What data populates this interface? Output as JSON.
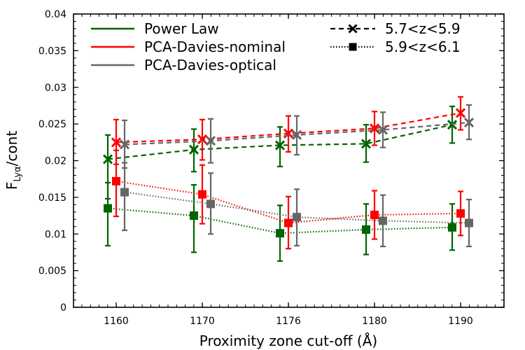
{
  "chart_data": {
    "type": "line",
    "xlabel": "Proximity zone cut-off (Å)",
    "ylabel_main": "F",
    "ylabel_sub": "Lyα",
    "ylabel_tail": "/cont",
    "categories": [
      "1160",
      "1170",
      "1176",
      "1180",
      "1190"
    ],
    "ylim": [
      0,
      0.04
    ],
    "yticks": [
      "0",
      "0.005",
      "0.01",
      "0.015",
      "0.02",
      "0.025",
      "0.03",
      "0.035",
      "0.04"
    ],
    "grid": false,
    "legend_position": "top",
    "legend_models": [
      {
        "name": "Power Law",
        "color": "#006400"
      },
      {
        "name": "PCA-Davies-nominal",
        "color": "#ff0000"
      },
      {
        "name": "PCA-Davies-optical",
        "color": "#666666"
      }
    ],
    "legend_redshift": [
      {
        "name": "5.7<z<5.9",
        "marker": "x",
        "dash": "dashed"
      },
      {
        "name": "5.9<z<6.1",
        "marker": "square",
        "dash": "dotted"
      }
    ],
    "series": [
      {
        "model": "Power Law",
        "z": "5.7<z<5.9",
        "color": "#006400",
        "marker": "x",
        "dash": "dashed",
        "values": [
          0.0202,
          0.0215,
          0.0221,
          0.0223,
          0.0249
        ],
        "err_low": [
          0.0054,
          0.003,
          0.0029,
          0.0025,
          0.0025
        ],
        "err_high": [
          0.0033,
          0.0028,
          0.0025,
          0.0026,
          0.0025
        ]
      },
      {
        "model": "PCA-Davies-nominal",
        "z": "5.7<z<5.9",
        "color": "#ff0000",
        "marker": "x",
        "dash": "dashed",
        "values": [
          0.0225,
          0.0229,
          0.0237,
          0.0244,
          0.0265
        ],
        "err_low": [
          0.003,
          0.0028,
          0.0025,
          0.0023,
          0.0023
        ],
        "err_high": [
          0.0031,
          0.0027,
          0.0024,
          0.0023,
          0.0022
        ]
      },
      {
        "model": "PCA-Davies-optical",
        "z": "5.7<z<5.9",
        "color": "#666666",
        "marker": "x",
        "dash": "dashed",
        "values": [
          0.0222,
          0.0227,
          0.0235,
          0.0242,
          0.0252
        ],
        "err_low": [
          0.0032,
          0.003,
          0.0027,
          0.0024,
          0.0023
        ],
        "err_high": [
          0.0033,
          0.003,
          0.0026,
          0.0024,
          0.0024
        ]
      },
      {
        "model": "Power Law",
        "z": "5.9<z<6.1",
        "color": "#006400",
        "marker": "square",
        "dash": "dotted",
        "values": [
          0.0135,
          0.0125,
          0.0101,
          0.0106,
          0.0109
        ],
        "err_low": [
          0.0051,
          0.005,
          0.0038,
          0.0034,
          0.0031
        ],
        "err_high": [
          0.0035,
          0.0042,
          0.0038,
          0.0035,
          0.0032
        ]
      },
      {
        "model": "PCA-Davies-nominal",
        "z": "5.9<z<6.1",
        "color": "#ff0000",
        "marker": "square",
        "dash": "dotted",
        "values": [
          0.0172,
          0.0154,
          0.0115,
          0.0126,
          0.0128
        ],
        "err_low": [
          0.0048,
          0.004,
          0.0035,
          0.0033,
          0.003
        ],
        "err_high": [
          0.0042,
          0.004,
          0.0036,
          0.0033,
          0.003
        ]
      },
      {
        "model": "PCA-Davies-optical",
        "z": "5.9<z<6.1",
        "color": "#666666",
        "marker": "square",
        "dash": "dotted",
        "values": [
          0.0157,
          0.0141,
          0.0123,
          0.0118,
          0.0115
        ],
        "err_low": [
          0.0052,
          0.0041,
          0.0039,
          0.0035,
          0.0032
        ],
        "err_high": [
          0.004,
          0.0042,
          0.0038,
          0.0035,
          0.0032
        ]
      }
    ]
  }
}
